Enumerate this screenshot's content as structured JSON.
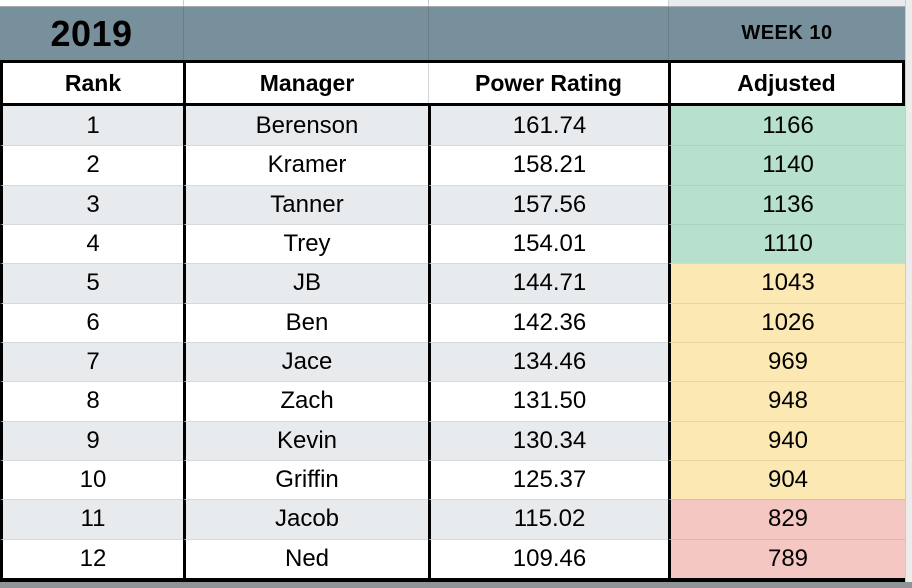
{
  "title": {
    "year": "2019",
    "week": "WEEK 10"
  },
  "columns": [
    "Rank",
    "Manager",
    "Power Rating",
    "Adjusted"
  ],
  "rows": [
    {
      "rank": "1",
      "manager": "Berenson",
      "power_rating": "161.74",
      "adjusted": "1166",
      "tier": "green"
    },
    {
      "rank": "2",
      "manager": "Kramer",
      "power_rating": "158.21",
      "adjusted": "1140",
      "tier": "green"
    },
    {
      "rank": "3",
      "manager": "Tanner",
      "power_rating": "157.56",
      "adjusted": "1136",
      "tier": "green"
    },
    {
      "rank": "4",
      "manager": "Trey",
      "power_rating": "154.01",
      "adjusted": "1110",
      "tier": "green"
    },
    {
      "rank": "5",
      "manager": "JB",
      "power_rating": "144.71",
      "adjusted": "1043",
      "tier": "yellow"
    },
    {
      "rank": "6",
      "manager": "Ben",
      "power_rating": "142.36",
      "adjusted": "1026",
      "tier": "yellow"
    },
    {
      "rank": "7",
      "manager": "Jace",
      "power_rating": "134.46",
      "adjusted": "969",
      "tier": "yellow"
    },
    {
      "rank": "8",
      "manager": "Zach",
      "power_rating": "131.50",
      "adjusted": "948",
      "tier": "yellow"
    },
    {
      "rank": "9",
      "manager": "Kevin",
      "power_rating": "130.34",
      "adjusted": "940",
      "tier": "yellow"
    },
    {
      "rank": "10",
      "manager": "Griffin",
      "power_rating": "125.37",
      "adjusted": "904",
      "tier": "yellow"
    },
    {
      "rank": "11",
      "manager": "Jacob",
      "power_rating": "115.02",
      "adjusted": "829",
      "tier": "red"
    },
    {
      "rank": "12",
      "manager": "Ned",
      "power_rating": "109.46",
      "adjusted": "789",
      "tier": "red"
    }
  ],
  "colors": {
    "title_bg": "#78909c",
    "tier_green": "#b7e1cd",
    "tier_yellow": "#fce8b2",
    "tier_red": "#f4c7c3",
    "alt_row": "#e8ebee",
    "row_white": "#ffffff"
  }
}
